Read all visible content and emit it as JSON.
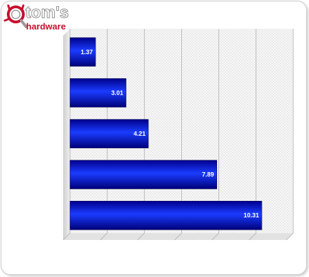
{
  "logo": {
    "line1": "tom's",
    "line2": "hardware",
    "icon": "magnifier-logo-icon"
  },
  "colors": {
    "bar_dark": "#00009a",
    "bar_mid": "#1535ff",
    "plot_background": "#eeeeee",
    "gridline": "#b9b9b9",
    "logo_red": "#c8102e",
    "logo_gray": "#9a9a9a"
  },
  "chart_data": {
    "type": "bar",
    "orientation": "horizontal",
    "categories": [
      "",
      "",
      "",
      "",
      ""
    ],
    "values": [
      1.37,
      3.01,
      4.21,
      7.89,
      10.31
    ],
    "data_labels": [
      "1.37",
      "3.01",
      "4.21",
      "7.89",
      "10.31"
    ],
    "title": "",
    "xlabel": "",
    "ylabel": "",
    "xlim": [
      0,
      12
    ],
    "grid": true,
    "legend": "none"
  }
}
